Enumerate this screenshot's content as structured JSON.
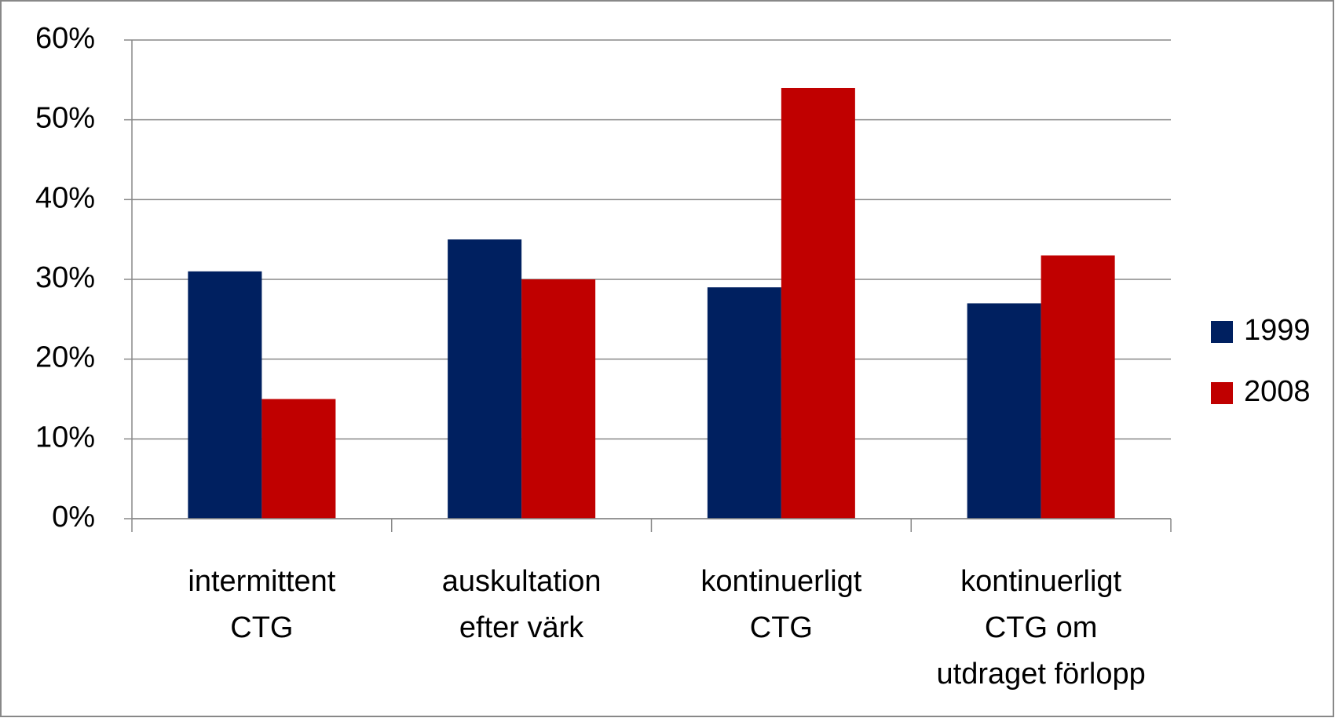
{
  "chart_data": {
    "type": "bar",
    "categories": [
      [
        "intermittent",
        "CTG"
      ],
      [
        "auskultation",
        "efter värk"
      ],
      [
        "kontinuerligt",
        "CTG"
      ],
      [
        "kontinuerligt",
        "CTG om",
        "utdraget förlopp"
      ]
    ],
    "series": [
      {
        "name": "1999",
        "color": "#002060",
        "values": [
          31,
          35,
          29,
          27
        ]
      },
      {
        "name": "2008",
        "color": "#c00000",
        "values": [
          15,
          30,
          54,
          33
        ]
      }
    ],
    "ylim": [
      0,
      60
    ],
    "yticks": [
      {
        "value": 0,
        "label": "0%"
      },
      {
        "value": 10,
        "label": "10%"
      },
      {
        "value": 20,
        "label": "20%"
      },
      {
        "value": 30,
        "label": "30%"
      },
      {
        "value": 40,
        "label": "40%"
      },
      {
        "value": 50,
        "label": "50%"
      },
      {
        "value": 60,
        "label": "60%"
      }
    ],
    "grid": true,
    "legend": "right"
  }
}
